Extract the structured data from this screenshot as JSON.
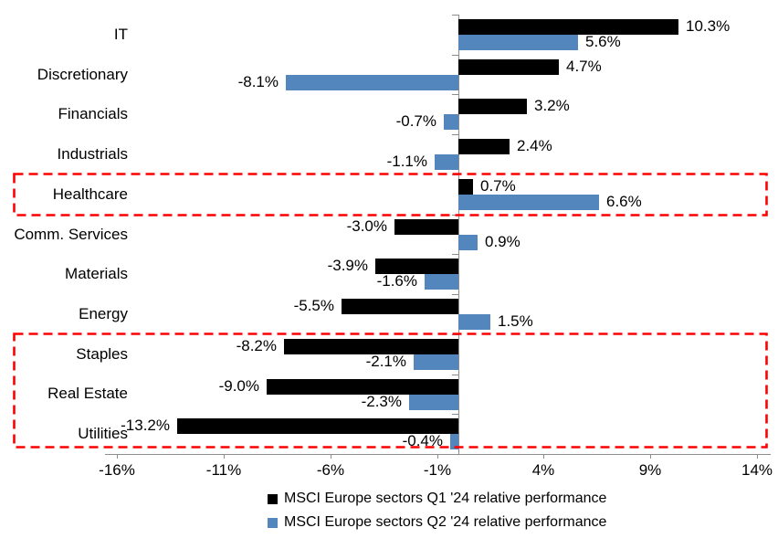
{
  "chart_data": {
    "type": "bar",
    "orientation": "horizontal",
    "title": "",
    "categories": [
      "IT",
      "Discretionary",
      "Financials",
      "Industrials",
      "Healthcare",
      "Comm. Services",
      "Materials",
      "Energy",
      "Staples",
      "Real Estate",
      "Utilities"
    ],
    "series": [
      {
        "name": "MSCI Europe sectors Q1 '24 relative performance",
        "color": "#000000",
        "values": [
          10.3,
          4.7,
          3.2,
          2.4,
          0.7,
          -3.0,
          -3.9,
          -5.5,
          -8.2,
          -9.0,
          -13.2
        ],
        "labels": [
          "10.3%",
          "4.7%",
          "3.2%",
          "2.4%",
          "0.7%",
          "-3.0%",
          "-3.9%",
          "-5.5%",
          "-8.2%",
          "-9.0%",
          "-13.2%"
        ]
      },
      {
        "name": "MSCI Europe sectors Q2 '24 relative performance",
        "color": "#5286BD",
        "values": [
          5.6,
          -8.1,
          -0.7,
          -1.1,
          6.6,
          0.9,
          -1.6,
          1.5,
          -2.1,
          -2.3,
          -0.4
        ],
        "labels": [
          "5.6%",
          "-8.1%",
          "-0.7%",
          "-1.1%",
          "6.6%",
          "0.9%",
          "-1.6%",
          "1.5%",
          "-2.1%",
          "-2.3%",
          "-0.4%"
        ]
      }
    ],
    "x_axis": {
      "min": -16,
      "max": 14,
      "tick_values": [
        -16,
        -11,
        -6,
        -1,
        4,
        9,
        14
      ],
      "tick_labels": [
        "-16%",
        "-11%",
        "-6%",
        "-1%",
        "4%",
        "9%",
        "14%"
      ]
    },
    "highlights": [
      {
        "categories": [
          "Healthcare"
        ],
        "first_index": 4,
        "last_index": 4,
        "color": "#FF0000"
      },
      {
        "categories": [
          "Staples",
          "Real Estate",
          "Utilities"
        ],
        "first_index": 8,
        "last_index": 10,
        "color": "#FF0000"
      }
    ],
    "legend": {
      "position": "bottom"
    },
    "grid": false,
    "axis_color": "#8c8c8c"
  }
}
